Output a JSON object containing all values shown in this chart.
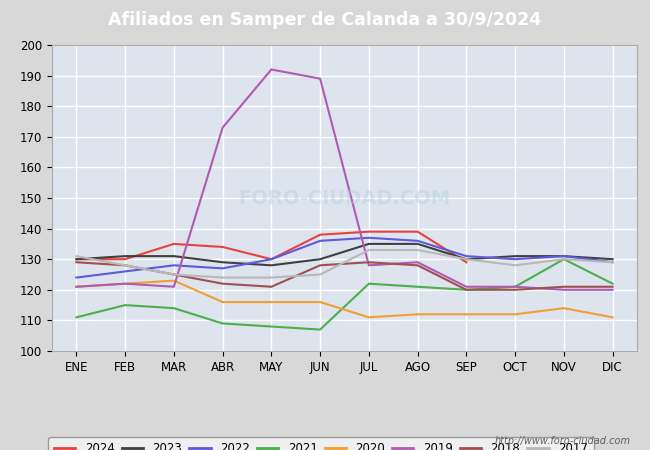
{
  "title": "Afiliados en Samper de Calanda a 30/9/2024",
  "title_color": "#ffffff",
  "title_bg_color": "#4a90c8",
  "xlabel": "",
  "ylabel": "",
  "ylim": [
    100,
    200
  ],
  "yticks": [
    100,
    110,
    120,
    130,
    140,
    150,
    160,
    170,
    180,
    190,
    200
  ],
  "months": [
    "ENE",
    "FEB",
    "MAR",
    "ABR",
    "MAY",
    "JUN",
    "JUL",
    "AGO",
    "SEP",
    "OCT",
    "NOV",
    "DIC"
  ],
  "watermark": "http://www.foro-ciudad.com",
  "series": [
    {
      "label": "2024",
      "color": "#e8423f",
      "data": [
        130,
        130,
        135,
        134,
        130,
        138,
        139,
        139,
        129,
        null,
        null,
        null
      ]
    },
    {
      "label": "2023",
      "color": "#404040",
      "data": [
        130,
        131,
        131,
        129,
        128,
        130,
        135,
        135,
        130,
        131,
        131,
        130
      ]
    },
    {
      "label": "2022",
      "color": "#5b5bdb",
      "data": [
        124,
        126,
        128,
        127,
        130,
        136,
        137,
        136,
        131,
        130,
        131,
        129
      ]
    },
    {
      "label": "2021",
      "color": "#4caf4c",
      "data": [
        111,
        115,
        114,
        109,
        108,
        107,
        122,
        121,
        120,
        121,
        130,
        122
      ]
    },
    {
      "label": "2020",
      "color": "#f0a030",
      "data": [
        121,
        122,
        123,
        116,
        116,
        116,
        111,
        112,
        112,
        112,
        114,
        111
      ]
    },
    {
      "label": "2019",
      "color": "#b05ab0",
      "data": [
        121,
        122,
        121,
        173,
        192,
        189,
        128,
        129,
        121,
        121,
        120,
        120
      ]
    },
    {
      "label": "2018",
      "color": "#a05050",
      "data": [
        129,
        128,
        125,
        122,
        121,
        128,
        129,
        128,
        120,
        120,
        121,
        121
      ]
    },
    {
      "label": "2017",
      "color": "#b8b8b8",
      "data": [
        131,
        128,
        125,
        124,
        124,
        125,
        133,
        133,
        130,
        128,
        130,
        129
      ]
    }
  ],
  "background_color": "#d8d8d8",
  "plot_bg_color": "#dde4ee",
  "grid_color": "#ffffff",
  "legend_bg": "#f5f5f5",
  "legend_border": "#888888"
}
